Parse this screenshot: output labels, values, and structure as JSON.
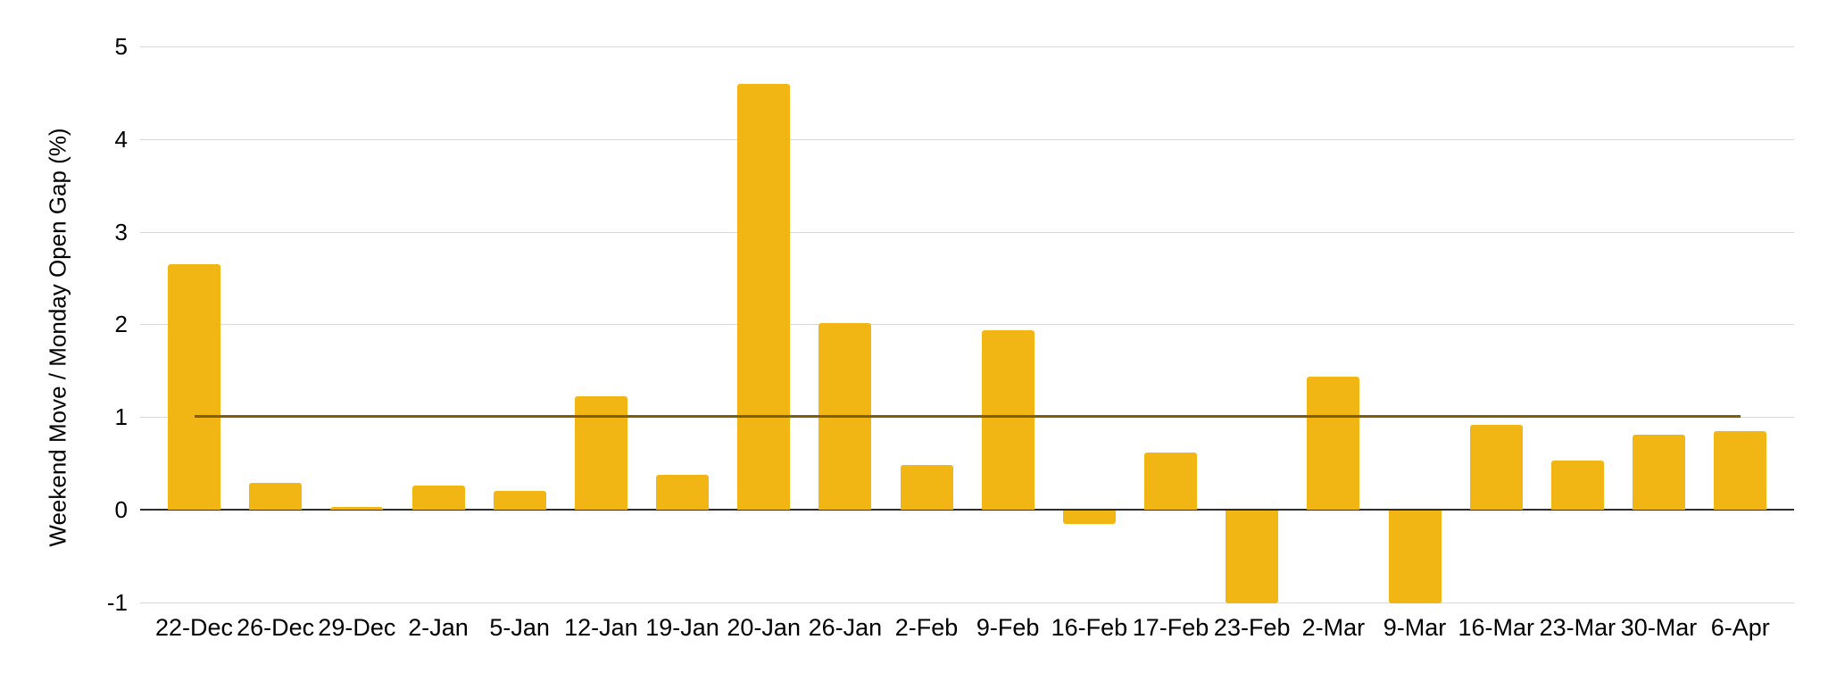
{
  "chart_data": {
    "type": "bar",
    "title": "",
    "xlabel": "",
    "ylabel": "Weekend Move / Monday Open Gap (%)",
    "categories": [
      "22-Dec",
      "26-Dec",
      "29-Dec",
      "2-Jan",
      "5-Jan",
      "12-Jan",
      "19-Jan",
      "20-Jan",
      "26-Jan",
      "2-Feb",
      "9-Feb",
      "16-Feb",
      "17-Feb",
      "23-Feb",
      "2-Mar",
      "9-Mar",
      "16-Mar",
      "23-Mar",
      "30-Mar",
      "6-Apr"
    ],
    "series": [
      {
        "name": "Weekend Move / Monday Open Gap (%)",
        "type": "bar",
        "color": "#F1B614",
        "values": [
          2.65,
          0.29,
          0.03,
          0.26,
          0.2,
          1.22,
          0.38,
          4.6,
          2.01,
          0.48,
          1.94,
          -0.14,
          0.62,
          -1.0,
          1.44,
          -1.0,
          0.92,
          0.53,
          0.81,
          0.85
        ]
      }
    ],
    "reference_line": {
      "value": 1,
      "color": "#7D5F0A",
      "span": "first-category-to-last-category"
    },
    "ylim": [
      -1,
      5
    ],
    "yticks": [
      5,
      4,
      3,
      2,
      1,
      0,
      -1
    ],
    "grid": true,
    "legend": "none",
    "background": "#FFFFFF",
    "colors": {
      "bar": "#F1B614",
      "reference_line": "#7D5F0A",
      "gridline": "#D9D9D9",
      "zero_axis": "#2E2E2E",
      "text": "#000000"
    }
  }
}
